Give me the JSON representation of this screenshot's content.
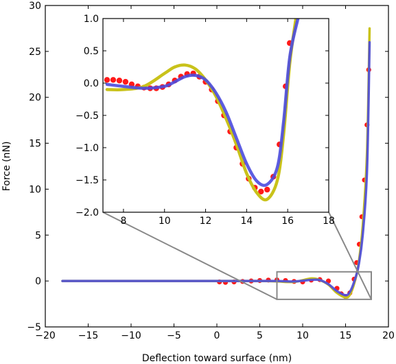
{
  "colors": {
    "red_series": "#ff1a1a",
    "yellow_series": "#c9c21a",
    "blue_series": "#4b4bdf",
    "zoom_box": "#888888"
  },
  "chart_data": [
    {
      "id": "main",
      "type": "line",
      "xlabel": "Deflection toward surface (nm)",
      "ylabel": "Force (nN)",
      "xlim": [
        -20,
        20
      ],
      "ylim": [
        -5,
        30
      ],
      "xticks": [
        -20,
        -15,
        -10,
        -5,
        0,
        5,
        10,
        15,
        20
      ],
      "xtick_labels": [
        "−20",
        "−15",
        "−10",
        "−5",
        "0",
        "5",
        "10",
        "15",
        "20"
      ],
      "yticks": [
        -5,
        0,
        5,
        10,
        15,
        20,
        25,
        30
      ],
      "ytick_labels": [
        "−5",
        "0",
        "5",
        "10",
        "15",
        "20",
        "25",
        "30"
      ],
      "zoom_region": {
        "x": [
          7,
          18
        ],
        "y": [
          -2,
          1
        ]
      },
      "series": [
        {
          "style": "markers",
          "color": "red",
          "x": [
            0.3,
            1,
            2,
            3,
            4,
            5,
            6,
            7,
            8,
            9,
            10,
            11,
            12,
            13,
            14,
            14.5,
            15,
            15.5,
            16,
            16.3,
            16.6,
            16.9,
            17.2,
            17.5,
            17.7
          ],
          "y": [
            -0.1,
            -0.15,
            -0.1,
            -0.05,
            0,
            0.05,
            0.1,
            0.12,
            0.05,
            -0.05,
            -0.1,
            0.1,
            0.15,
            0,
            -0.8,
            -1.4,
            -1.7,
            -1.3,
            0.2,
            2,
            4,
            7,
            11,
            17,
            23
          ]
        },
        {
          "style": "line",
          "color": "yellow",
          "x": [
            -18,
            -10,
            0,
            5,
            7,
            9,
            11,
            12,
            13,
            14,
            15,
            15.5,
            16,
            16.5,
            17,
            17.5,
            17.8
          ],
          "y": [
            0,
            0,
            0,
            0,
            -0.05,
            -0.1,
            0.28,
            0.1,
            -0.4,
            -1.3,
            -1.8,
            -1.5,
            -0.3,
            1.8,
            6,
            14,
            27.5
          ]
        },
        {
          "style": "line",
          "color": "blue",
          "x": [
            -18,
            -10,
            0,
            5,
            7,
            9,
            11,
            12,
            13,
            14,
            15,
            15.5,
            16,
            16.5,
            17,
            17.5,
            17.8
          ],
          "y": [
            0,
            0,
            0,
            0,
            0,
            -0.05,
            0.12,
            0.1,
            -0.35,
            -1.1,
            -1.55,
            -1.2,
            -0.1,
            1.6,
            5,
            12,
            26
          ]
        }
      ]
    },
    {
      "id": "inset",
      "type": "line",
      "xlim": [
        7,
        18
      ],
      "ylim": [
        -2,
        1
      ],
      "xticks": [
        8,
        10,
        12,
        14,
        16,
        18
      ],
      "xtick_labels": [
        "8",
        "10",
        "12",
        "14",
        "16",
        "18"
      ],
      "yticks": [
        -2,
        -1.5,
        -1,
        -0.5,
        0,
        0.5,
        1
      ],
      "ytick_labels": [
        "−2.0",
        "−1.5",
        "−1.0",
        "−0.5",
        "0.0",
        "0.5",
        "1.0"
      ],
      "series": [
        {
          "style": "markers",
          "color": "red",
          "x": [
            7.2,
            7.5,
            7.8,
            8.1,
            8.4,
            8.7,
            9.0,
            9.3,
            9.6,
            9.9,
            10.2,
            10.5,
            10.8,
            11.1,
            11.4,
            11.7,
            12.0,
            12.3,
            12.6,
            12.9,
            13.2,
            13.5,
            13.8,
            14.1,
            14.4,
            14.7,
            15.0,
            15.3,
            15.6,
            15.9,
            16.1
          ],
          "y": [
            0.05,
            0.05,
            0.04,
            0.02,
            -0.02,
            -0.05,
            -0.07,
            -0.08,
            -0.08,
            -0.06,
            -0.02,
            0.04,
            0.1,
            0.14,
            0.15,
            0.1,
            0.02,
            -0.1,
            -0.28,
            -0.5,
            -0.75,
            -1.0,
            -1.25,
            -1.48,
            -1.62,
            -1.68,
            -1.65,
            -1.45,
            -0.95,
            -0.05,
            0.62
          ]
        },
        {
          "style": "line",
          "color": "yellow",
          "x": [
            7.2,
            8,
            9,
            10,
            10.5,
            11,
            11.5,
            12,
            12.5,
            13,
            13.5,
            14,
            14.5,
            15,
            15.5,
            15.8,
            16.1,
            16.4
          ],
          "y": [
            -0.1,
            -0.1,
            -0.05,
            0.15,
            0.25,
            0.28,
            0.22,
            0.05,
            -0.2,
            -0.55,
            -0.95,
            -1.4,
            -1.7,
            -1.8,
            -1.5,
            -0.8,
            0.3,
            1.0
          ]
        },
        {
          "style": "line",
          "color": "blue",
          "x": [
            7.2,
            8,
            9,
            10,
            10.5,
            11,
            11.5,
            12,
            12.5,
            13,
            13.5,
            14,
            14.5,
            15,
            15.5,
            15.8,
            16.1,
            16.5
          ],
          "y": [
            -0.02,
            -0.05,
            -0.08,
            -0.05,
            0.02,
            0.1,
            0.12,
            0.05,
            -0.15,
            -0.45,
            -0.85,
            -1.25,
            -1.52,
            -1.57,
            -1.3,
            -0.6,
            0.4,
            1.0
          ]
        }
      ]
    }
  ]
}
